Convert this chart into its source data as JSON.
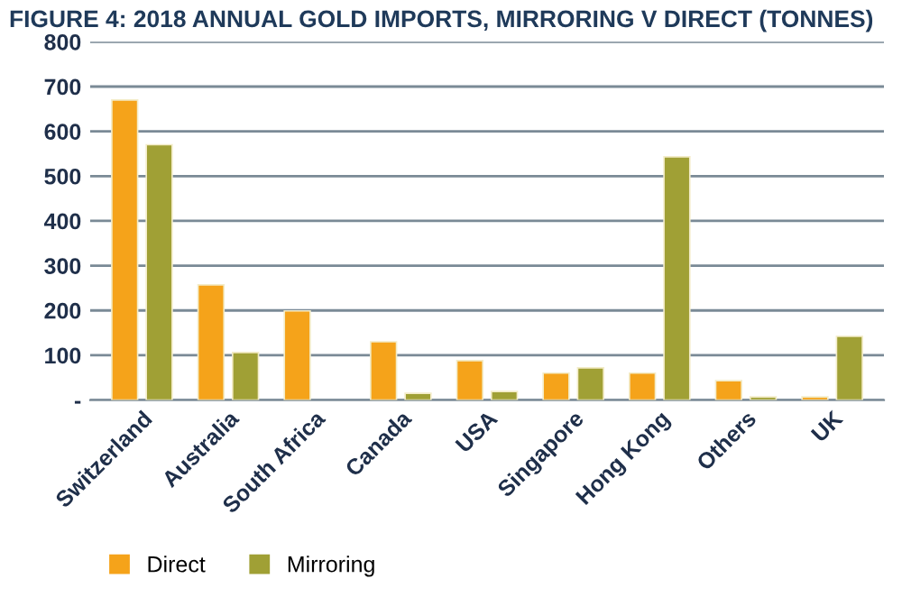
{
  "chart_data": {
    "type": "bar",
    "title": "FIGURE 4: 2018 ANNUAL GOLD IMPORTS, MIRRORING V DIRECT (TONNES)",
    "categories": [
      "Switzerland",
      "Australia",
      "South Africa",
      "Canada",
      "USA",
      "Singapore",
      "Hong Kong",
      "Others",
      "UK"
    ],
    "series": [
      {
        "name": "Direct",
        "color": "#f5a31a",
        "values": [
          670,
          257,
          199,
          130,
          88,
          60,
          60,
          43,
          7
        ]
      },
      {
        "name": "Mirroring",
        "color": "#a0a035",
        "values": [
          570,
          106,
          null,
          15,
          19,
          72,
          543,
          7,
          142
        ]
      }
    ],
    "ylim": [
      0,
      800
    ],
    "yticks": [
      {
        "value": 0,
        "label": "-"
      },
      100,
      200,
      300,
      400,
      500,
      600,
      700,
      800
    ],
    "grid": "y",
    "legend": "bottom"
  }
}
